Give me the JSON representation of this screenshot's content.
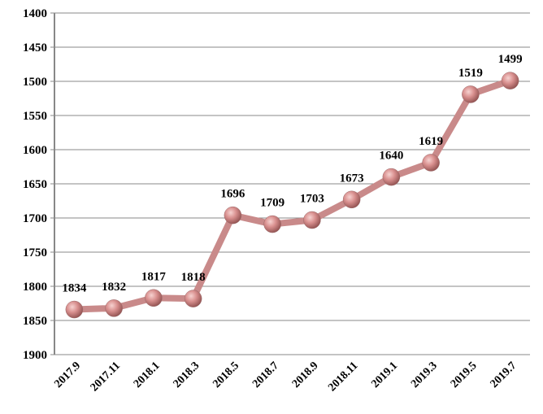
{
  "chart_data": {
    "type": "line",
    "title": "",
    "xlabel": "",
    "ylabel": "",
    "categories": [
      "2017.9",
      "2017.11",
      "2018.1",
      "2018.3",
      "2018.5",
      "2018.7",
      "2018.9",
      "2018.11",
      "2019.1",
      "2019.3",
      "2019.5",
      "2019.7"
    ],
    "values": [
      1834,
      1832,
      1817,
      1818,
      1696,
      1709,
      1703,
      1673,
      1640,
      1619,
      1519,
      1499
    ],
    "data_labels": [
      "1834",
      "1832",
      "1817",
      "1818",
      "1696",
      "1709",
      "1703",
      "1673",
      "1640",
      "1619",
      "1519",
      "1499"
    ],
    "ylim": [
      1400,
      1900
    ],
    "y_inverted": true,
    "yticks": [
      "1400",
      "1450",
      "1500",
      "1550",
      "1600",
      "1650",
      "1700",
      "1750",
      "1800",
      "1850",
      "1900"
    ],
    "grid": true,
    "legend": "none",
    "colors": {
      "line": "#c98a8a",
      "marker": "#d9908f",
      "grid": "#888888"
    }
  }
}
